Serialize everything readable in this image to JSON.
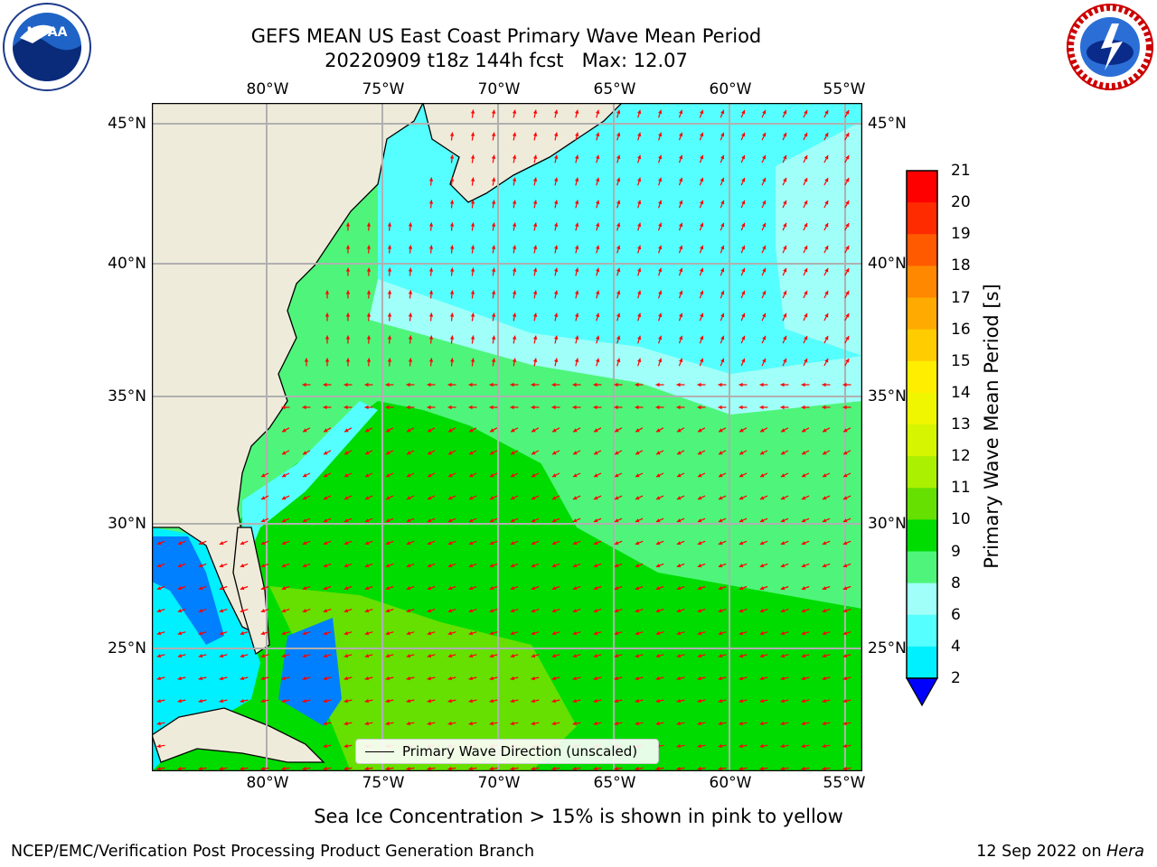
{
  "header": {
    "title_line1": "GEFS MEAN US East Coast Primary Wave Mean Period",
    "title_line2": "20220909 t18z 144h fcst   Max: 12.07"
  },
  "logos": {
    "left": {
      "icon": "noaa-logo-icon",
      "text": "NOAA"
    },
    "right": {
      "icon": "nws-logo-icon",
      "text": "NATIONAL WEATHER SERVICE"
    }
  },
  "map": {
    "lon_ticks": [
      "80°W",
      "75°W",
      "70°W",
      "65°W",
      "60°W",
      "55°W"
    ],
    "lat_ticks": [
      "45°N",
      "40°N",
      "35°N",
      "30°N",
      "25°N"
    ],
    "legend_label": "Primary Wave Direction (unscaled)",
    "land_color": "#efebda",
    "arrow_color": "#ff0000"
  },
  "colorbar": {
    "title": "Primary Wave Mean Period [s]",
    "ticks": [
      "21",
      "20",
      "19",
      "18",
      "17",
      "16",
      "15",
      "14",
      "13",
      "12",
      "11",
      "10",
      "9",
      "8",
      "6",
      "4",
      "2"
    ],
    "colors": [
      "#ff0000",
      "#ff2b00",
      "#ff5a00",
      "#ff8800",
      "#ffaa00",
      "#ffcc00",
      "#ffee00",
      "#f0f500",
      "#d5f500",
      "#aaf000",
      "#66e000",
      "#00dc00",
      "#4ef57a",
      "#a0fff8",
      "#55ffff",
      "#00f0ff",
      "#0080ff"
    ],
    "extend_color": "#0000ff"
  },
  "subtitle": "Sea Ice Concentration > 15% is shown in pink to yellow",
  "footer": {
    "left": "NCEP/EMC/Verification Post Processing Product Generation Branch",
    "right_date": "12 Sep 2022 on ",
    "right_host": "Hera"
  }
}
